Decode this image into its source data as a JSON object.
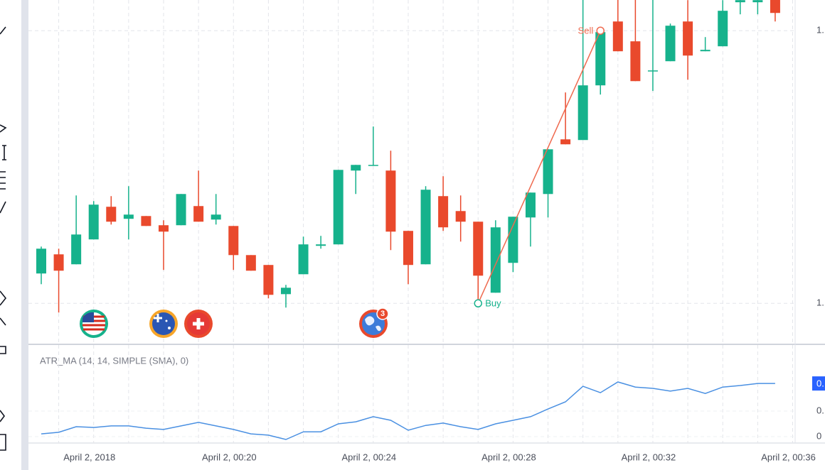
{
  "chart_data": {
    "type": "candlestick",
    "categories": [
      null,
      null,
      null,
      "April 2, 2018",
      null,
      null,
      null,
      null,
      null,
      null,
      null,
      "April 2, 00:20",
      null,
      null,
      null,
      null,
      null,
      null,
      null,
      "April 2, 00:24",
      null,
      null,
      null,
      null,
      null,
      null,
      null,
      "April 2, 00:28",
      null,
      null,
      null,
      null,
      null,
      null,
      null,
      "April 2, 00:32",
      null,
      null,
      null,
      null,
      null,
      null,
      null,
      "April 2, 00:36"
    ],
    "open": [
      1.10438,
      1.10719,
      1.10573,
      1.10938,
      1.11417,
      1.1124,
      1.11281,
      1.11146,
      1.11146,
      1.11427,
      1.11229,
      1.11135,
      1.10708,
      1.10563,
      1.10135,
      1.10427,
      1.10844,
      1.10865,
      1.11948,
      1.12021,
      1.11948,
      1.11063,
      1.10573,
      1.11573,
      1.11354,
      1.11198,
      1.10156,
      1.10594,
      1.1126,
      1.11604,
      1.12406,
      1.12396,
      1.13198,
      1.14135,
      1.13844,
      1.13406,
      1.13552,
      1.14135,
      1.13698,
      1.13771,
      1.14417,
      1.14417,
      1.145,
      null
    ],
    "high": [
      1.10833,
      1.10802,
      1.11583,
      1.115,
      1.11573,
      1.11719,
      1.11281,
      1.11219,
      1.11604,
      1.11948,
      1.11604,
      1.11135,
      1.10708,
      1.10563,
      1.10271,
      1.10979,
      1.1099,
      1.11958,
      1.12031,
      1.12594,
      1.1224,
      1.11063,
      1.11719,
      1.11865,
      1.11583,
      1.11198,
      1.11219,
      1.11271,
      1.11625,
      1.1226,
      1.13094,
      1.14552,
      1.14031,
      1.145,
      1.145,
      1.145,
      1.14104,
      1.14448,
      1.13906,
      1.14448,
      1.145,
      1.145,
      1.14552,
      null
    ],
    "low": [
      1.10281,
      1.09865,
      1.10573,
      1.10938,
      1.11156,
      1.10938,
      1.11135,
      1.1049,
      1.11146,
      1.11198,
      1.11156,
      1.1049,
      1.10479,
      1.10073,
      1.09938,
      1.10427,
      1.10802,
      1.10865,
      1.11604,
      1.12021,
      1.10781,
      1.10281,
      1.10573,
      1.11063,
      1.10906,
      1.10021,
      1.10156,
      1.10458,
      1.10833,
      1.1126,
      1.12333,
      1.12396,
      1.13063,
      1.13698,
      1.1326,
      1.13115,
      1.13552,
      1.13281,
      1.13698,
      1.13771,
      1.1424,
      1.1424,
      1.14135,
      null
    ],
    "close": [
      1.10802,
      1.10479,
      1.1101,
      1.11448,
      1.11198,
      1.11302,
      1.11135,
      1.11052,
      1.11604,
      1.11198,
      1.11302,
      1.10708,
      1.10479,
      1.10125,
      1.10229,
      1.10865,
      1.10865,
      1.11958,
      1.12031,
      1.12031,
      1.11052,
      1.10563,
      1.11667,
      1.11115,
      1.11198,
      1.10406,
      1.11115,
      1.11271,
      1.11625,
      1.1226,
      1.12333,
      1.13198,
      1.13979,
      1.13698,
      1.1326,
      1.13417,
      1.14073,
      1.13635,
      1.13719,
      1.14292,
      1.14448,
      1.14448,
      1.1426,
      null
    ],
    "up_color": "#16b28c",
    "down_color": "#e9492c",
    "ylim": [
      1.0943,
      1.1445
    ],
    "yticks": [
      {
        "value": 1.14,
        "label": "1."
      },
      {
        "value": 1.1,
        "label": "1."
      }
    ],
    "grid": true,
    "annotations": [
      {
        "text": "Buy",
        "index": 25,
        "value": 1.1,
        "color": "#16b28c"
      },
      {
        "text": "Sell",
        "index": 32,
        "value": 1.14,
        "color": "#ef6a4f"
      }
    ],
    "event_badge": "3",
    "atr": {
      "title": "ATR_MA (14, 14, SIMPLE (SMA), 0)",
      "color": "#4a90e2",
      "values": [
        0.00111,
        0.00117,
        0.00139,
        0.00136,
        0.00142,
        0.00142,
        0.00133,
        0.00128,
        0.00142,
        0.00156,
        0.00142,
        0.00128,
        0.00111,
        0.00106,
        0.00089,
        0.00119,
        0.00119,
        0.0015,
        0.00158,
        0.00178,
        0.00164,
        0.00125,
        0.00144,
        0.00153,
        0.00139,
        0.00128,
        0.0015,
        0.00164,
        0.00178,
        0.00208,
        0.00236,
        0.00297,
        0.00272,
        0.00314,
        0.00294,
        0.00289,
        0.00278,
        0.00289,
        0.00269,
        0.00294,
        0.003,
        0.00308,
        0.00308,
        null
      ],
      "ylim": [
        0.000806,
        0.004472
      ],
      "yticks": [
        {
          "value": 0.002,
          "label": "0."
        },
        {
          "value": 0.001,
          "label": "0"
        }
      ],
      "last_value": {
        "value": 0.00308,
        "label": "0."
      }
    }
  }
}
